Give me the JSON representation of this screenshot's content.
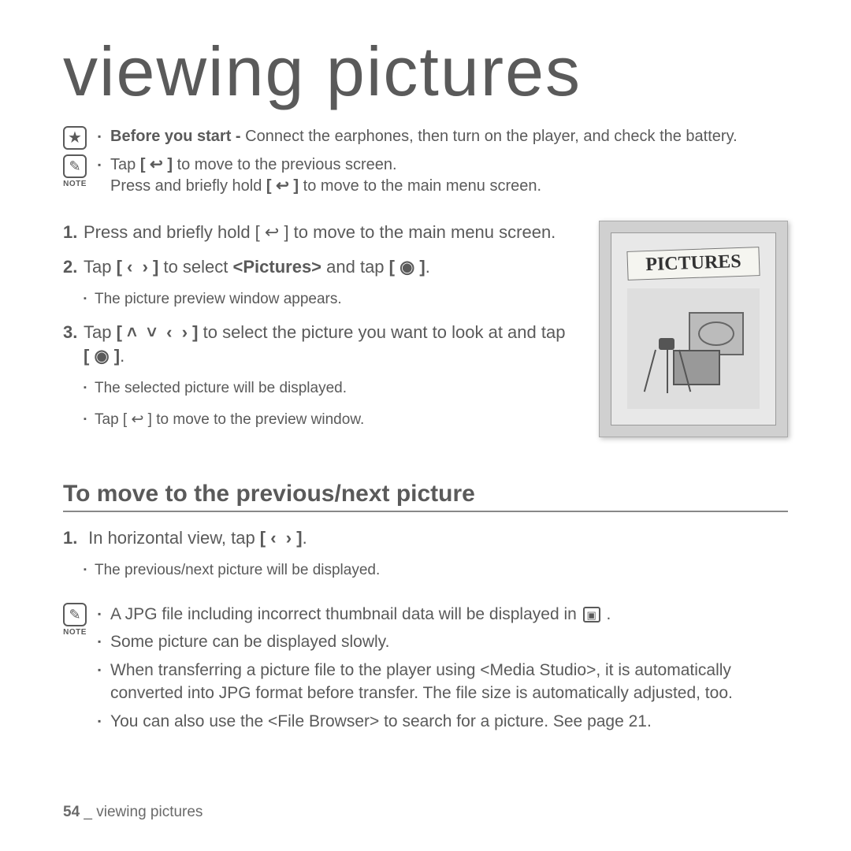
{
  "title": "viewing pictures",
  "intro": {
    "before_label": "Before you start - ",
    "before_text": "Connect the earphones, then turn on the player, and check the battery.",
    "note_lines": [
      "Tap [ ↩ ] to move to the previous screen.",
      "Press and briefly hold [ ↩ ] to move to the main menu screen."
    ],
    "note_label": "NOTE"
  },
  "steps": [
    {
      "num": "1.",
      "text_pre": "Press and briefly hold ",
      "sym": "[ ↩ ]",
      "text_post": " to move to the main menu screen.",
      "bold_sym": false
    },
    {
      "num": "2.",
      "text_pre": "Tap ",
      "sym": "[ ‹  › ]",
      "text_mid": " to select ",
      "bold_mid": "<Pictures>",
      "text_post2": " and tap ",
      "sym2": "[ ◉ ]",
      "bold_sym": true,
      "sub": [
        "The picture preview window appears."
      ]
    },
    {
      "num": "3.",
      "text_pre": "Tap ",
      "sym": "[ ˄  ˅  ‹  › ]",
      "text_post": " to select the picture you want to look at and tap ",
      "sym2": "[ ◉ ]",
      "bold_sym": true,
      "sub": [
        "The selected picture will be displayed.",
        "Tap [ ↩ ] to move to the preview window."
      ]
    }
  ],
  "device_banner": "PICTURES",
  "section2": {
    "heading": "To move to the previous/next picture",
    "step_num": "1.",
    "step_text_pre": " In horizontal view, tap ",
    "step_sym": "[ ‹  › ]",
    "step_text_post": ".",
    "sub": "The previous/next picture will be displayed."
  },
  "notes2": {
    "label": "NOTE",
    "items": [
      {
        "pre": "A JPG file including incorrect thumbnail data will be displayed in ",
        "has_thumb": true,
        "post": " ."
      },
      {
        "pre": "Some picture can be displayed slowly."
      },
      {
        "pre": "When transferring a picture file to the player using <Media Studio>, it is automatically converted into JPG format before transfer. The file size is automatically adjusted, too."
      },
      {
        "pre": "You can also use the <File Browser> to search for a picture. See page 21."
      }
    ]
  },
  "footer": {
    "page": "54",
    "sep": " _ ",
    "text": "viewing pictures"
  }
}
